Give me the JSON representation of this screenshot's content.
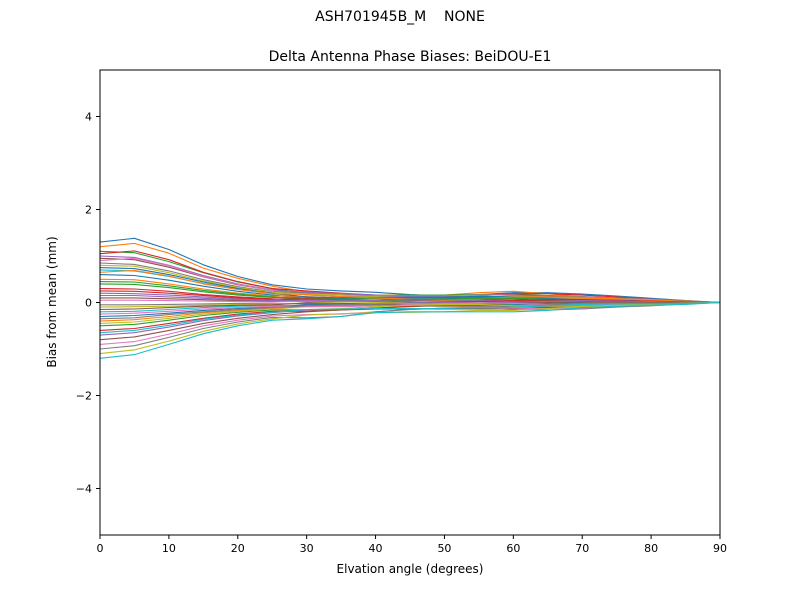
{
  "chart_data": {
    "type": "line",
    "suptitle": "ASH701945B_M    NONE",
    "title": "Delta Antenna Phase Biases: BeiDOU-E1",
    "xlabel": "Elvation angle (degrees)",
    "ylabel": "Bias from mean (mm)",
    "xlim": [
      0,
      90
    ],
    "ylim": [
      -5,
      5
    ],
    "x_ticks": [
      0,
      10,
      20,
      30,
      40,
      50,
      60,
      70,
      80,
      90
    ],
    "y_ticks": [
      -4,
      -2,
      0,
      2,
      4
    ],
    "grid": false,
    "legend": "none",
    "x": [
      0,
      5,
      10,
      15,
      20,
      25,
      30,
      35,
      40,
      45,
      50,
      55,
      60,
      65,
      70,
      75,
      80,
      85,
      90
    ],
    "series": [
      {
        "name": "trace-01",
        "color": "#1f77b4",
        "y": [
          1.3,
          1.38,
          1.14,
          0.81,
          0.56,
          0.38,
          0.29,
          0.25,
          0.22,
          0.17,
          0.14,
          0.17,
          0.21,
          0.21,
          0.18,
          0.14,
          0.09,
          0.04,
          0.0
        ]
      },
      {
        "name": "trace-02",
        "color": "#ff7f0e",
        "y": [
          1.2,
          1.27,
          1.06,
          0.74,
          0.52,
          0.35,
          0.23,
          0.17,
          0.16,
          0.16,
          0.16,
          0.21,
          0.24,
          0.19,
          0.12,
          0.09,
          0.06,
          0.04,
          0.0
        ]
      },
      {
        "name": "trace-03",
        "color": "#2ca02c",
        "y": [
          1.1,
          1.07,
          0.88,
          0.64,
          0.44,
          0.3,
          0.19,
          0.16,
          0.15,
          0.16,
          0.16,
          0.17,
          0.18,
          0.15,
          0.09,
          0.07,
          0.06,
          0.03,
          0.0
        ]
      },
      {
        "name": "trace-04",
        "color": "#d62728",
        "y": [
          1.05,
          1.11,
          0.92,
          0.65,
          0.45,
          0.3,
          0.25,
          0.2,
          0.16,
          0.12,
          0.1,
          0.14,
          0.19,
          0.19,
          0.16,
          0.12,
          0.07,
          0.03,
          0.0
        ]
      },
      {
        "name": "trace-05",
        "color": "#9467bd",
        "y": [
          1.0,
          0.97,
          0.8,
          0.58,
          0.4,
          0.27,
          0.22,
          0.19,
          0.16,
          0.13,
          0.1,
          0.11,
          0.14,
          0.15,
          0.13,
          0.1,
          0.07,
          0.03,
          0.0
        ]
      },
      {
        "name": "trace-06",
        "color": "#8c564b",
        "y": [
          0.95,
          0.92,
          0.76,
          0.55,
          0.38,
          0.26,
          0.17,
          0.12,
          0.11,
          0.12,
          0.13,
          0.16,
          0.17,
          0.14,
          0.08,
          0.06,
          0.05,
          0.03,
          0.0
        ]
      },
      {
        "name": "trace-07",
        "color": "#e377c2",
        "y": [
          0.9,
          0.95,
          0.79,
          0.56,
          0.39,
          0.26,
          0.16,
          0.13,
          0.14,
          0.14,
          0.14,
          0.16,
          0.16,
          0.12,
          0.08,
          0.06,
          0.04,
          0.03,
          0.0
        ]
      },
      {
        "name": "trace-08",
        "color": "#7f7f7f",
        "y": [
          0.85,
          0.82,
          0.68,
          0.49,
          0.34,
          0.23,
          0.2,
          0.16,
          0.12,
          0.09,
          0.07,
          0.1,
          0.14,
          0.15,
          0.12,
          0.09,
          0.06,
          0.03,
          0.0
        ]
      },
      {
        "name": "trace-09",
        "color": "#bcbd22",
        "y": [
          0.8,
          0.78,
          0.64,
          0.46,
          0.32,
          0.22,
          0.18,
          0.16,
          0.13,
          0.1,
          0.08,
          0.08,
          0.11,
          0.12,
          0.11,
          0.08,
          0.06,
          0.02,
          0.0
        ]
      },
      {
        "name": "trace-10",
        "color": "#17becf",
        "y": [
          0.7,
          0.68,
          0.56,
          0.41,
          0.28,
          0.19,
          0.12,
          0.08,
          0.08,
          0.09,
          0.1,
          0.13,
          0.13,
          0.11,
          0.06,
          0.04,
          0.03,
          0.02,
          0.0
        ]
      },
      {
        "name": "trace-11",
        "color": "#1f77b4",
        "y": [
          0.6,
          0.58,
          0.48,
          0.35,
          0.24,
          0.16,
          0.09,
          0.08,
          0.08,
          0.1,
          0.1,
          0.1,
          0.1,
          0.07,
          0.04,
          0.03,
          0.03,
          0.02,
          0.0
        ]
      },
      {
        "name": "trace-12",
        "color": "#ff7f0e",
        "y": [
          0.5,
          0.49,
          0.4,
          0.29,
          0.2,
          0.14,
          0.13,
          0.1,
          0.07,
          0.05,
          0.03,
          0.05,
          0.08,
          0.1,
          0.09,
          0.06,
          0.04,
          0.02,
          0.0
        ]
      },
      {
        "name": "trace-13",
        "color": "#2ca02c",
        "y": [
          0.4,
          0.39,
          0.32,
          0.23,
          0.16,
          0.11,
          0.1,
          0.09,
          0.08,
          0.05,
          0.03,
          0.03,
          0.04,
          0.06,
          0.06,
          0.05,
          0.03,
          0.01,
          0.0
        ]
      },
      {
        "name": "trace-14",
        "color": "#d62728",
        "y": [
          0.3,
          0.29,
          0.24,
          0.17,
          0.12,
          0.08,
          0.04,
          0.02,
          0.02,
          0.04,
          0.06,
          0.07,
          0.07,
          0.05,
          0.01,
          0.0,
          0.01,
          0.01,
          0.0
        ]
      },
      {
        "name": "trace-15",
        "color": "#9467bd",
        "y": [
          0.2,
          0.19,
          0.16,
          0.12,
          0.08,
          0.05,
          0.01,
          0.01,
          0.03,
          0.05,
          0.05,
          0.05,
          0.03,
          0.01,
          -0.01,
          0.0,
          0.0,
          0.01,
          0.0
        ]
      },
      {
        "name": "trace-16",
        "color": "#8c564b",
        "y": [
          0.1,
          0.1,
          0.08,
          0.06,
          0.04,
          0.03,
          0.05,
          0.04,
          0.01,
          -0.01,
          -0.02,
          -0.01,
          0.02,
          0.04,
          0.04,
          0.03,
          0.02,
          0.0,
          0.0
        ]
      },
      {
        "name": "trace-17",
        "color": "#e377c2",
        "y": [
          0.05,
          0.05,
          0.04,
          0.03,
          0.02,
          0.01,
          0.03,
          0.04,
          0.03,
          0.01,
          -0.01,
          -0.02,
          -0.01,
          0.01,
          0.02,
          0.02,
          0.01,
          0.0,
          0.0
        ]
      },
      {
        "name": "trace-18",
        "color": "#7f7f7f",
        "y": [
          -0.05,
          -0.05,
          -0.04,
          -0.03,
          -0.02,
          -0.02,
          -0.03,
          -0.04,
          -0.03,
          -0.01,
          0.01,
          0.02,
          0.01,
          -0.01,
          -0.03,
          -0.02,
          -0.01,
          0.0,
          0.0
        ]
      },
      {
        "name": "trace-19",
        "color": "#bcbd22",
        "y": [
          -0.1,
          -0.09,
          -0.08,
          -0.06,
          -0.04,
          -0.03,
          -0.01,
          0.01,
          0.0,
          -0.02,
          -0.04,
          -0.04,
          -0.04,
          -0.01,
          0.01,
          0.01,
          0.0,
          0.0,
          0.0
        ]
      },
      {
        "name": "trace-20",
        "color": "#17becf",
        "y": [
          -0.2,
          -0.19,
          -0.15,
          -0.11,
          -0.08,
          -0.06,
          -0.08,
          -0.07,
          -0.04,
          -0.01,
          0.0,
          -0.01,
          -0.03,
          -0.05,
          -0.05,
          -0.04,
          -0.02,
          -0.01,
          0.0
        ]
      },
      {
        "name": "trace-21",
        "color": "#1f77b4",
        "y": [
          -0.3,
          -0.28,
          -0.23,
          -0.17,
          -0.13,
          -0.1,
          -0.05,
          -0.05,
          -0.06,
          -0.07,
          -0.08,
          -0.06,
          -0.05,
          -0.02,
          0.0,
          0.0,
          -0.01,
          -0.01,
          0.0
        ]
      },
      {
        "name": "trace-22",
        "color": "#ff7f0e",
        "y": [
          -0.4,
          -0.37,
          -0.3,
          -0.22,
          -0.17,
          -0.13,
          -0.09,
          -0.07,
          -0.06,
          -0.07,
          -0.08,
          -0.09,
          -0.08,
          -0.06,
          -0.02,
          -0.01,
          -0.01,
          -0.01,
          0.0
        ]
      },
      {
        "name": "trace-23",
        "color": "#2ca02c",
        "y": [
          -0.5,
          -0.47,
          -0.38,
          -0.28,
          -0.21,
          -0.16,
          -0.16,
          -0.15,
          -0.12,
          -0.09,
          -0.06,
          -0.04,
          -0.06,
          -0.07,
          -0.08,
          -0.06,
          -0.04,
          -0.02,
          0.0
        ]
      },
      {
        "name": "trace-24",
        "color": "#d62728",
        "y": [
          -0.6,
          -0.56,
          -0.45,
          -0.34,
          -0.25,
          -0.19,
          -0.19,
          -0.16,
          -0.12,
          -0.08,
          -0.06,
          -0.06,
          -0.09,
          -0.1,
          -0.1,
          -0.07,
          -0.05,
          -0.02,
          0.0
        ]
      },
      {
        "name": "trace-25",
        "color": "#9467bd",
        "y": [
          -0.7,
          -0.65,
          -0.53,
          -0.39,
          -0.29,
          -0.22,
          -0.16,
          -0.15,
          -0.14,
          -0.14,
          -0.14,
          -0.12,
          -0.11,
          -0.08,
          -0.05,
          -0.04,
          -0.03,
          -0.02,
          0.0
        ]
      },
      {
        "name": "trace-26",
        "color": "#8c564b",
        "y": [
          -0.8,
          -0.74,
          -0.6,
          -0.45,
          -0.34,
          -0.26,
          -0.2,
          -0.16,
          -0.14,
          -0.14,
          -0.14,
          -0.14,
          -0.14,
          -0.11,
          -0.07,
          -0.04,
          -0.04,
          -0.02,
          0.0
        ]
      },
      {
        "name": "trace-27",
        "color": "#e377c2",
        "y": [
          -0.9,
          -0.84,
          -0.68,
          -0.5,
          -0.38,
          -0.29,
          -0.26,
          -0.25,
          -0.2,
          -0.15,
          -0.12,
          -0.1,
          -0.12,
          -0.13,
          -0.12,
          -0.09,
          -0.06,
          -0.03,
          0.0
        ]
      },
      {
        "name": "trace-28",
        "color": "#7f7f7f",
        "y": [
          -1.0,
          -0.93,
          -0.75,
          -0.56,
          -0.42,
          -0.32,
          -0.33,
          -0.3,
          -0.2,
          -0.15,
          -0.12,
          -0.12,
          -0.15,
          -0.16,
          -0.14,
          -0.1,
          -0.07,
          -0.03,
          0.0
        ]
      },
      {
        "name": "trace-29",
        "color": "#bcbd22",
        "y": [
          -1.1,
          -1.02,
          -0.83,
          -0.62,
          -0.46,
          -0.35,
          -0.27,
          -0.24,
          -0.22,
          -0.21,
          -0.2,
          -0.17,
          -0.17,
          -0.13,
          -0.09,
          -0.07,
          -0.06,
          -0.03,
          0.0
        ]
      },
      {
        "name": "trace-30",
        "color": "#17becf",
        "y": [
          -1.2,
          -1.12,
          -0.9,
          -0.67,
          -0.5,
          -0.38,
          -0.35,
          -0.3,
          -0.22,
          -0.2,
          -0.2,
          -0.2,
          -0.2,
          -0.17,
          -0.11,
          -0.08,
          -0.06,
          -0.04,
          0.0
        ]
      },
      {
        "name": "trace-31",
        "color": "#1f77b4",
        "y": [
          0.75,
          0.73,
          0.6,
          0.44,
          0.3,
          0.2,
          0.12,
          0.1,
          0.11,
          0.12,
          0.12,
          0.13,
          0.12,
          0.09,
          0.05,
          0.04,
          0.04,
          0.02,
          0.0
        ]
      },
      {
        "name": "trace-32",
        "color": "#ff7f0e",
        "y": [
          0.65,
          0.69,
          0.57,
          0.4,
          0.28,
          0.19,
          0.17,
          0.13,
          0.1,
          0.07,
          0.05,
          0.08,
          0.12,
          0.12,
          0.11,
          0.08,
          0.05,
          0.02,
          0.0
        ]
      },
      {
        "name": "trace-33",
        "color": "#2ca02c",
        "y": [
          0.45,
          0.44,
          0.36,
          0.26,
          0.18,
          0.12,
          0.07,
          0.04,
          0.04,
          0.06,
          0.07,
          0.09,
          0.09,
          0.07,
          0.03,
          0.02,
          0.02,
          0.01,
          0.0
        ]
      },
      {
        "name": "trace-34",
        "color": "#d62728",
        "y": [
          0.25,
          0.24,
          0.2,
          0.15,
          0.1,
          0.07,
          0.08,
          0.06,
          0.04,
          0.01,
          0.0,
          0.02,
          0.04,
          0.06,
          0.06,
          0.04,
          0.03,
          0.01,
          0.0
        ]
      },
      {
        "name": "trace-35",
        "color": "#9467bd",
        "y": [
          0.15,
          0.15,
          0.12,
          0.09,
          0.06,
          0.04,
          0.05,
          0.05,
          0.04,
          0.02,
          0.0,
          -0.01,
          0.0,
          0.02,
          0.04,
          0.03,
          0.02,
          0.0,
          0.0
        ]
      },
      {
        "name": "trace-36",
        "color": "#8c564b",
        "y": [
          -0.15,
          -0.14,
          -0.11,
          -0.08,
          -0.06,
          -0.05,
          -0.01,
          -0.02,
          -0.03,
          -0.05,
          -0.05,
          -0.04,
          -0.02,
          0.0,
          0.01,
          0.01,
          0.0,
          0.0,
          0.0
        ]
      },
      {
        "name": "trace-37",
        "color": "#e377c2",
        "y": [
          -0.25,
          -0.23,
          -0.19,
          -0.14,
          -0.11,
          -0.08,
          -0.09,
          -0.09,
          -0.07,
          -0.04,
          -0.02,
          -0.01,
          -0.02,
          -0.04,
          -0.05,
          -0.04,
          -0.03,
          -0.01,
          0.0
        ]
      },
      {
        "name": "trace-38",
        "color": "#7f7f7f",
        "y": [
          -0.35,
          -0.33,
          -0.26,
          -0.2,
          -0.15,
          -0.11,
          -0.07,
          -0.05,
          -0.05,
          -0.06,
          -0.07,
          -0.08,
          -0.07,
          -0.05,
          -0.02,
          -0.01,
          -0.01,
          -0.01,
          0.0
        ]
      },
      {
        "name": "trace-39",
        "color": "#bcbd22",
        "y": [
          -0.45,
          -0.42,
          -0.34,
          -0.25,
          -0.19,
          -0.14,
          -0.15,
          -0.13,
          -0.09,
          -0.06,
          -0.04,
          -0.04,
          -0.07,
          -0.08,
          -0.08,
          -0.06,
          -0.04,
          -0.01,
          0.0
        ]
      },
      {
        "name": "trace-40",
        "color": "#17becf",
        "y": [
          -0.65,
          -0.6,
          -0.49,
          -0.36,
          -0.27,
          -0.21,
          -0.15,
          -0.14,
          -0.13,
          -0.13,
          -0.13,
          -0.11,
          -0.1,
          -0.07,
          -0.04,
          -0.03,
          -0.03,
          -0.02,
          0.0
        ]
      }
    ]
  }
}
